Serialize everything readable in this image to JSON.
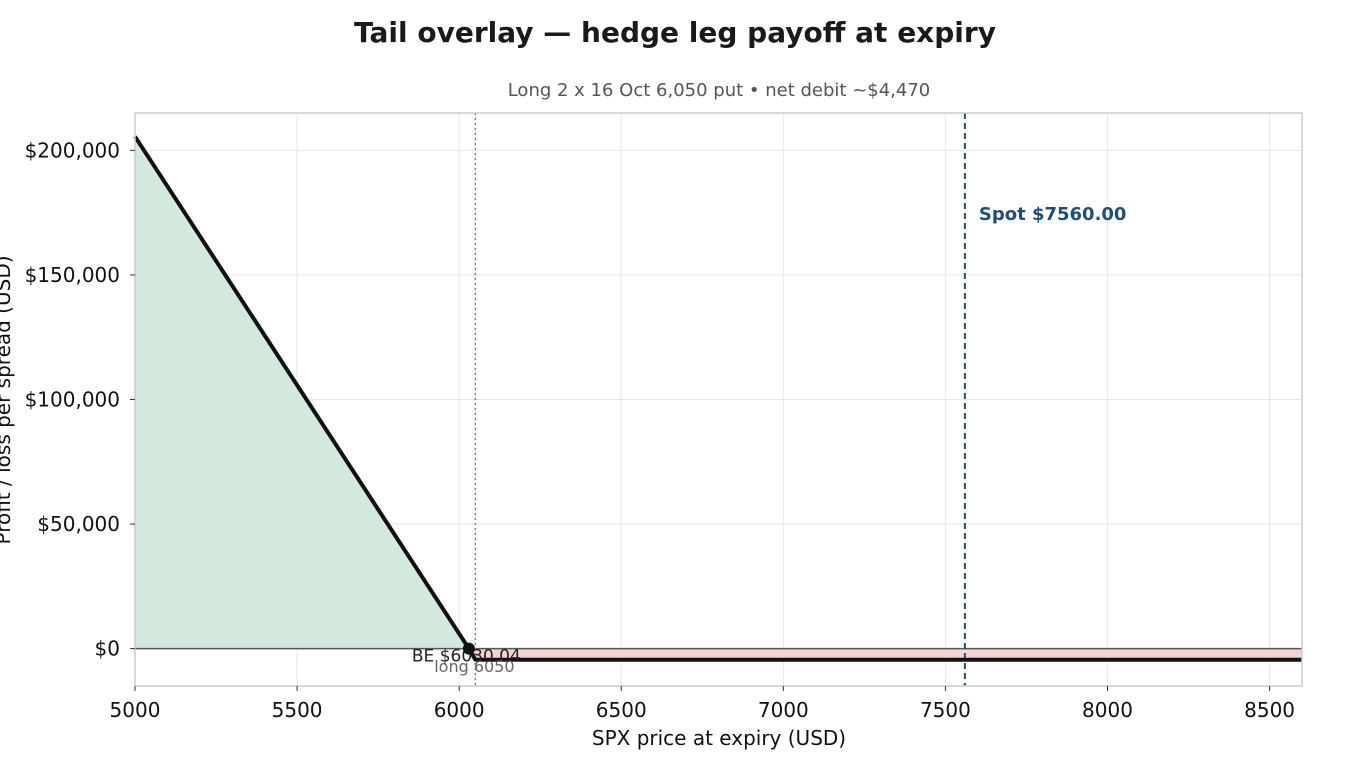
{
  "chart_data": {
    "type": "line",
    "title": "Tail overlay — hedge leg payoff at expiry",
    "subtitle": "Long 2 x 16 Oct 6,050 put  •  net debit ~$4,470",
    "xlabel": "SPX price at expiry (USD)",
    "ylabel": "Profit / loss per spread (USD)",
    "xlim": [
      5000,
      8600
    ],
    "ylim": [
      -15000,
      215000
    ],
    "x_ticks": [
      5000,
      5500,
      6000,
      6500,
      7000,
      7500,
      8000,
      8500
    ],
    "x_tick_labels": [
      "5000",
      "5500",
      "6000",
      "6500",
      "7000",
      "7500",
      "8000",
      "8500"
    ],
    "y_ticks": [
      0,
      50000,
      100000,
      150000,
      200000
    ],
    "y_tick_labels": [
      "$0",
      "$50,000",
      "$100,000",
      "$150,000",
      "$200,000"
    ],
    "grid": true,
    "series": [
      {
        "x": [
          5000,
          6030.04,
          6050,
          8600
        ],
        "y": [
          205530,
          0,
          -4470,
          -4470
        ],
        "color": "#111111"
      }
    ],
    "profit_fill_color": "#d4e9dd",
    "loss_fill_color": "#f6d3d1",
    "annotations": {
      "spot": {
        "x": 7560,
        "label": "Spot $7560.00",
        "color": "#1f4e79"
      },
      "strike": {
        "x": 6050,
        "label": "long 6050"
      },
      "breakeven": {
        "x": 6030.04,
        "y": 0,
        "label": "BE $6030.04"
      }
    }
  }
}
